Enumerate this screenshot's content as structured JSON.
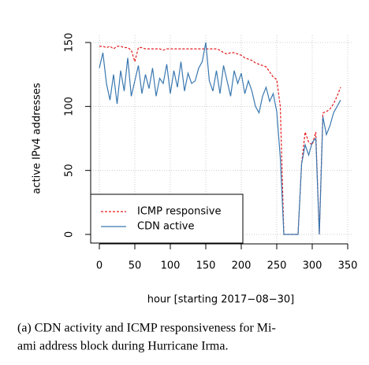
{
  "chart_data": {
    "type": "line",
    "x_label": "hour [starting 2017−08−30]",
    "y_label": "active IPv4 addresses",
    "caption": [
      "(a) CDN activity and ICMP responsiveness for Mi-",
      "ami address block during Hurricane Irma."
    ],
    "x": [
      0,
      5,
      10,
      15,
      20,
      25,
      30,
      35,
      40,
      45,
      50,
      55,
      60,
      65,
      70,
      75,
      80,
      85,
      90,
      95,
      100,
      105,
      110,
      115,
      120,
      125,
      130,
      135,
      140,
      145,
      150,
      155,
      160,
      165,
      170,
      175,
      180,
      185,
      190,
      195,
      200,
      205,
      210,
      215,
      220,
      225,
      230,
      235,
      240,
      245,
      250,
      255,
      260,
      265,
      270,
      275,
      280,
      285,
      290,
      295,
      300,
      305,
      310,
      315,
      320,
      325,
      330,
      335,
      340
    ],
    "series": [
      {
        "name": "ICMP responsive",
        "color": "#e41a1c",
        "dash": true,
        "values": [
          147,
          147,
          146,
          147,
          145,
          147,
          147,
          146,
          146,
          144,
          135,
          146,
          146,
          145,
          145,
          145,
          145,
          145,
          144,
          145,
          145,
          145,
          145,
          145,
          145,
          145,
          145,
          145,
          145,
          145,
          145,
          145,
          145,
          145,
          144,
          142,
          141,
          142,
          142,
          141,
          140,
          138,
          137,
          136,
          134,
          133,
          132,
          131,
          127,
          123,
          121,
          100,
          0,
          0,
          0,
          0,
          0,
          55,
          80,
          72,
          70,
          80,
          0,
          95,
          96,
          98,
          102,
          108,
          115
        ]
      },
      {
        "name": "CDN active",
        "color": "#3a78b0",
        "dash": false,
        "values": [
          130,
          142,
          118,
          105,
          125,
          102,
          128,
          112,
          138,
          108,
          120,
          132,
          110,
          125,
          114,
          130,
          108,
          122,
          118,
          133,
          110,
          128,
          115,
          135,
          112,
          126,
          118,
          120,
          130,
          135,
          150,
          120,
          112,
          128,
          110,
          132,
          120,
          108,
          128,
          118,
          126,
          110,
          120,
          112,
          100,
          95,
          108,
          115,
          104,
          110,
          96,
          60,
          0,
          0,
          0,
          0,
          0,
          55,
          70,
          62,
          72,
          75,
          0,
          92,
          78,
          85,
          95,
          100,
          105
        ]
      }
    ],
    "xlim": [
      0,
      350
    ],
    "xticks": [
      0,
      50,
      100,
      150,
      200,
      250,
      300,
      350
    ],
    "ylim": [
      0,
      150
    ],
    "yticks": [
      0,
      50,
      100,
      150
    ],
    "grid": true,
    "legend": "bottom-left"
  }
}
